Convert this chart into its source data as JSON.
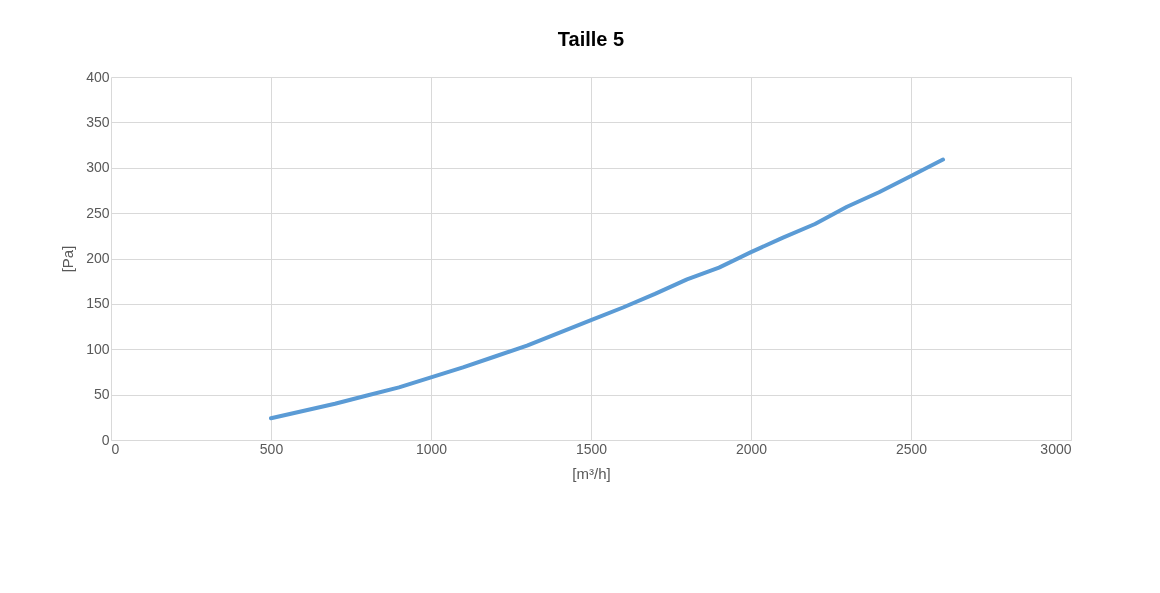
{
  "chart_data": {
    "type": "line",
    "title": "Taille 5",
    "xlabel": "[m³/h]",
    "ylabel": "[Pa]",
    "x": [
      500,
      600,
      700,
      800,
      900,
      1000,
      1100,
      1200,
      1300,
      1400,
      1500,
      1600,
      1700,
      1800,
      1900,
      2000,
      2100,
      2200,
      2300,
      2400,
      2500,
      2600
    ],
    "series": [
      {
        "color": "#5b9bd5",
        "values": [
          24,
          32,
          40,
          49,
          58,
          69,
          80,
          92,
          104,
          118,
          132,
          146,
          161,
          177,
          190,
          207,
          223,
          238,
          257,
          273,
          291,
          309
        ]
      }
    ],
    "xlim": [
      0,
      3000
    ],
    "xticks": [
      0,
      500,
      1000,
      1500,
      2000,
      2500,
      3000
    ],
    "ylim": [
      0,
      400
    ],
    "yticks": [
      0,
      50,
      100,
      150,
      200,
      250,
      300,
      350,
      400
    ],
    "grid": true,
    "marker": "none",
    "line_style": "solid"
  }
}
